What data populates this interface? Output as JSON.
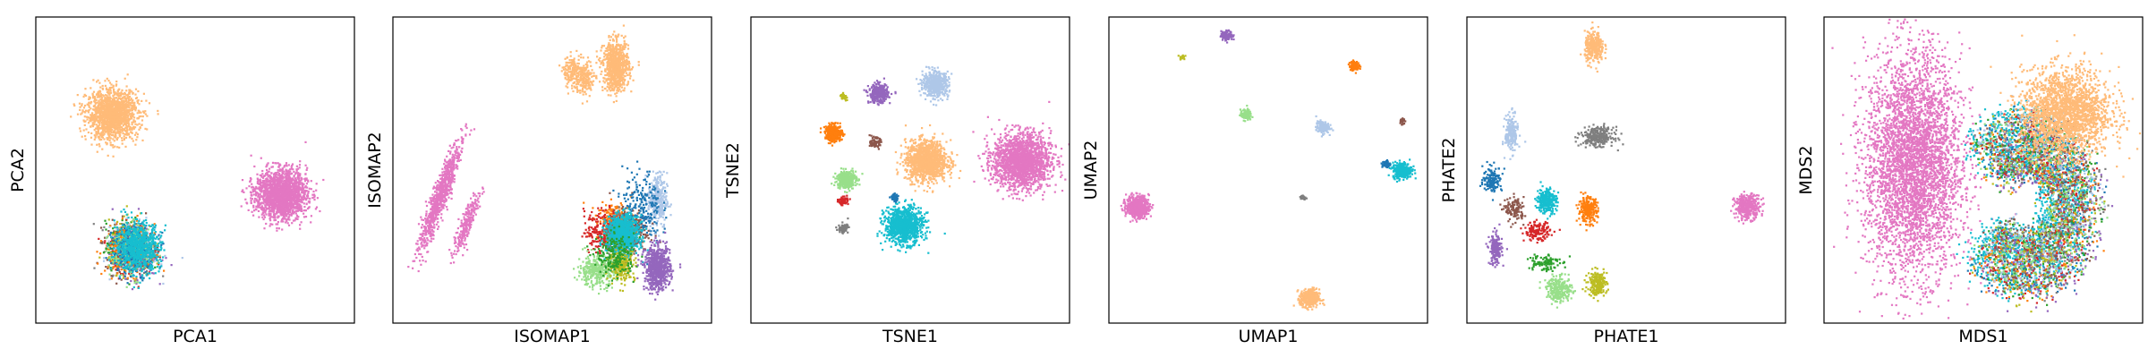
{
  "palette": {
    "blue": "#1f77b4",
    "light_blue": "#aec7e8",
    "orange": "#ff7f0e",
    "light_orange": "#ffbb78",
    "green": "#2ca02c",
    "light_green": "#98df8a",
    "red": "#d62728",
    "purple": "#9467bd",
    "brown": "#8c564b",
    "pink": "#e377c2",
    "gray": "#7f7f7f",
    "olive": "#bcbd22",
    "cyan": "#17becf"
  },
  "chart_data": [
    {
      "type": "scatter",
      "xlabel": "PCA1",
      "ylabel": "PCA2",
      "xlim": [
        0,
        100
      ],
      "ylim": [
        0,
        100
      ],
      "grid": false,
      "ticks": false,
      "clusters": [
        {
          "color": "light_orange",
          "cx": 24,
          "cy": 68,
          "rx": 8,
          "ry": 8,
          "n": 1500
        },
        {
          "color": "pink",
          "cx": 77,
          "cy": 42,
          "rx": 8,
          "ry": 8,
          "n": 1800
        },
        {
          "color": "gray",
          "cx": 30,
          "cy": 24,
          "rx": 7,
          "ry": 8,
          "n": 250
        },
        {
          "color": "brown",
          "cx": 29,
          "cy": 25,
          "rx": 7,
          "ry": 8,
          "n": 250
        },
        {
          "color": "purple",
          "cx": 31,
          "cy": 23,
          "rx": 7,
          "ry": 8,
          "n": 250
        },
        {
          "color": "green",
          "cx": 29,
          "cy": 25,
          "rx": 7,
          "ry": 8,
          "n": 200
        },
        {
          "color": "red",
          "cx": 30,
          "cy": 24,
          "rx": 7,
          "ry": 8,
          "n": 200
        },
        {
          "color": "olive",
          "cx": 30,
          "cy": 25,
          "rx": 7,
          "ry": 8,
          "n": 200
        },
        {
          "color": "orange",
          "cx": 29,
          "cy": 24,
          "rx": 7,
          "ry": 8,
          "n": 250
        },
        {
          "color": "light_blue",
          "cx": 31,
          "cy": 25,
          "rx": 7,
          "ry": 8,
          "n": 200
        },
        {
          "color": "light_green",
          "cx": 30,
          "cy": 23,
          "rx": 7,
          "ry": 8,
          "n": 200
        },
        {
          "color": "blue",
          "cx": 31,
          "cy": 24,
          "rx": 7,
          "ry": 8,
          "n": 250
        },
        {
          "color": "cyan",
          "cx": 32,
          "cy": 25,
          "rx": 7,
          "ry": 8,
          "n": 700
        }
      ]
    },
    {
      "type": "scatter",
      "xlabel": "ISOMAP1",
      "ylabel": "ISOMAP2",
      "xlim": [
        0,
        100
      ],
      "ylim": [
        0,
        100
      ],
      "grid": false,
      "ticks": false,
      "clusters": [
        {
          "color": "light_orange",
          "cx": 56,
          "cy": 82,
          "rx": 2.5,
          "ry": 5,
          "n": 150
        },
        {
          "color": "light_orange",
          "cx": 70,
          "cy": 84,
          "rx": 4,
          "ry": 8,
          "n": 800
        },
        {
          "color": "light_orange",
          "cx": 60,
          "cy": 80,
          "rx": 3,
          "ry": 6,
          "n": 200
        },
        {
          "color": "pink",
          "cx": 13,
          "cy": 36,
          "rx": 2.5,
          "ry": 14,
          "n": 450,
          "tilt": -0.35
        },
        {
          "color": "pink",
          "cx": 17,
          "cy": 48,
          "rx": 2,
          "ry": 14,
          "n": 350,
          "tilt": -0.35
        },
        {
          "color": "pink",
          "cx": 23,
          "cy": 32,
          "rx": 2,
          "ry": 11,
          "n": 250,
          "tilt": -0.35
        },
        {
          "color": "light_blue",
          "cx": 83,
          "cy": 40,
          "rx": 3,
          "ry": 9,
          "n": 300
        },
        {
          "color": "orange",
          "cx": 70,
          "cy": 33,
          "rx": 6,
          "ry": 6,
          "n": 300
        },
        {
          "color": "brown",
          "cx": 74,
          "cy": 30,
          "rx": 6,
          "ry": 7,
          "n": 250
        },
        {
          "color": "red",
          "cx": 66,
          "cy": 30,
          "rx": 6,
          "ry": 7,
          "n": 220
        },
        {
          "color": "blue",
          "cx": 78,
          "cy": 38,
          "rx": 6,
          "ry": 12,
          "n": 220
        },
        {
          "color": "gray",
          "cx": 72,
          "cy": 28,
          "rx": 5,
          "ry": 6,
          "n": 200
        },
        {
          "color": "cyan",
          "cx": 72,
          "cy": 29,
          "rx": 5,
          "ry": 6,
          "n": 900
        },
        {
          "color": "light_green",
          "cx": 64,
          "cy": 17,
          "rx": 6,
          "ry": 5,
          "n": 350
        },
        {
          "color": "olive",
          "cx": 72,
          "cy": 19,
          "rx": 4,
          "ry": 5,
          "n": 220
        },
        {
          "color": "green",
          "cx": 70,
          "cy": 22,
          "rx": 6,
          "ry": 7,
          "n": 200
        },
        {
          "color": "purple",
          "cx": 83,
          "cy": 18,
          "rx": 4,
          "ry": 7,
          "n": 700
        }
      ]
    },
    {
      "type": "scatter",
      "xlabel": "TSNE1",
      "ylabel": "TSNE2",
      "xlim": [
        0,
        100
      ],
      "ylim": [
        0,
        100
      ],
      "grid": false,
      "ticks": false,
      "clusters": [
        {
          "color": "pink",
          "cx": 85,
          "cy": 53,
          "rx": 9,
          "ry": 9,
          "n": 1800
        },
        {
          "color": "light_orange",
          "cx": 55,
          "cy": 53,
          "rx": 6.5,
          "ry": 6.5,
          "n": 1200
        },
        {
          "color": "cyan",
          "cx": 48,
          "cy": 32,
          "rx": 6,
          "ry": 6,
          "n": 1000
        },
        {
          "color": "light_blue",
          "cx": 58,
          "cy": 78,
          "rx": 4,
          "ry": 4,
          "n": 500
        },
        {
          "color": "purple",
          "cx": 40,
          "cy": 75,
          "rx": 3,
          "ry": 3,
          "n": 350
        },
        {
          "color": "orange",
          "cx": 26,
          "cy": 62,
          "rx": 2.7,
          "ry": 2.7,
          "n": 320
        },
        {
          "color": "light_green",
          "cx": 30,
          "cy": 47,
          "rx": 3,
          "ry": 3,
          "n": 350
        },
        {
          "color": "brown",
          "cx": 39,
          "cy": 59,
          "rx": 1.5,
          "ry": 1.5,
          "n": 80
        },
        {
          "color": "red",
          "cx": 29,
          "cy": 40,
          "rx": 1.5,
          "ry": 1.2,
          "n": 80
        },
        {
          "color": "blue",
          "cx": 45,
          "cy": 41,
          "rx": 1.2,
          "ry": 1.2,
          "n": 60
        },
        {
          "color": "gray",
          "cx": 29,
          "cy": 31,
          "rx": 1.5,
          "ry": 1.5,
          "n": 80
        },
        {
          "color": "olive",
          "cx": 29,
          "cy": 74,
          "rx": 1,
          "ry": 1,
          "n": 30
        }
      ]
    },
    {
      "type": "scatter",
      "xlabel": "UMAP1",
      "ylabel": "UMAP2",
      "xlim": [
        0,
        100
      ],
      "ylim": [
        0,
        100
      ],
      "grid": false,
      "ticks": false,
      "clusters": [
        {
          "color": "pink",
          "cx": 9,
          "cy": 38,
          "rx": 3.5,
          "ry": 3.5,
          "n": 600
        },
        {
          "color": "light_orange",
          "cx": 63,
          "cy": 8,
          "rx": 3,
          "ry": 3,
          "n": 350
        },
        {
          "color": "cyan",
          "cx": 92,
          "cy": 50,
          "rx": 3,
          "ry": 2.5,
          "n": 350
        },
        {
          "color": "blue",
          "cx": 87,
          "cy": 52,
          "rx": 1.2,
          "ry": 1.2,
          "n": 50
        },
        {
          "color": "light_blue",
          "cx": 67,
          "cy": 64,
          "rx": 2,
          "ry": 2,
          "n": 150
        },
        {
          "color": "light_green",
          "cx": 43,
          "cy": 68,
          "rx": 1.7,
          "ry": 1.7,
          "n": 120
        },
        {
          "color": "purple",
          "cx": 37,
          "cy": 94,
          "rx": 1.8,
          "ry": 1.5,
          "n": 120
        },
        {
          "color": "orange",
          "cx": 77,
          "cy": 84,
          "rx": 1.5,
          "ry": 1.5,
          "n": 100
        },
        {
          "color": "olive",
          "cx": 23,
          "cy": 87,
          "rx": 0.8,
          "ry": 0.8,
          "n": 20
        },
        {
          "color": "brown",
          "cx": 92,
          "cy": 66,
          "rx": 0.8,
          "ry": 1.2,
          "n": 30
        },
        {
          "color": "gray",
          "cx": 61,
          "cy": 41,
          "rx": 0.8,
          "ry": 0.8,
          "n": 30
        }
      ]
    },
    {
      "type": "scatter",
      "xlabel": "PHATE1",
      "ylabel": "PHATE2",
      "xlim": [
        0,
        100
      ],
      "ylim": [
        0,
        100
      ],
      "grid": false,
      "ticks": false,
      "clusters": [
        {
          "color": "light_orange",
          "cx": 40,
          "cy": 90,
          "rx": 3,
          "ry": 5,
          "n": 300
        },
        {
          "color": "gray",
          "cx": 41,
          "cy": 61,
          "rx": 5,
          "ry": 3,
          "n": 300
        },
        {
          "color": "light_blue",
          "cx": 14,
          "cy": 62,
          "rx": 2,
          "ry": 6,
          "n": 200
        },
        {
          "color": "pink",
          "cx": 88,
          "cy": 38,
          "rx": 4,
          "ry": 4,
          "n": 350
        },
        {
          "color": "cyan",
          "cx": 25,
          "cy": 40,
          "rx": 3,
          "ry": 4,
          "n": 300
        },
        {
          "color": "orange",
          "cx": 38,
          "cy": 37,
          "rx": 3,
          "ry": 4,
          "n": 250
        },
        {
          "color": "blue",
          "cx": 8,
          "cy": 47,
          "rx": 3,
          "ry": 4,
          "n": 150
        },
        {
          "color": "brown",
          "cx": 15,
          "cy": 37,
          "rx": 3,
          "ry": 4,
          "n": 120
        },
        {
          "color": "red",
          "cx": 22,
          "cy": 30,
          "rx": 4,
          "ry": 3,
          "n": 150
        },
        {
          "color": "purple",
          "cx": 9,
          "cy": 24,
          "rx": 2,
          "ry": 5,
          "n": 200
        },
        {
          "color": "light_green",
          "cx": 29,
          "cy": 11,
          "rx": 4,
          "ry": 4,
          "n": 250
        },
        {
          "color": "olive",
          "cx": 41,
          "cy": 13,
          "rx": 3,
          "ry": 4,
          "n": 200
        },
        {
          "color": "green",
          "cx": 24,
          "cy": 20,
          "rx": 5,
          "ry": 3,
          "n": 100
        }
      ]
    },
    {
      "type": "scatter",
      "xlabel": "MDS1",
      "ylabel": "MDS2",
      "xlim": [
        0,
        100
      ],
      "ylim": [
        0,
        100
      ],
      "grid": false,
      "ticks": false,
      "clusters": [
        {
          "color": "pink",
          "cx": 28,
          "cy": 52,
          "rx": 15,
          "ry": 36,
          "n": 4000
        },
        {
          "color": "cyan",
          "cx": 62,
          "cy": 40,
          "rx": 24,
          "ry": 34,
          "n": 1800,
          "ring": true
        },
        {
          "color": "blue",
          "cx": 64,
          "cy": 38,
          "rx": 24,
          "ry": 34,
          "n": 400,
          "ring": true
        },
        {
          "color": "orange",
          "cx": 64,
          "cy": 38,
          "rx": 24,
          "ry": 34,
          "n": 400,
          "ring": true
        },
        {
          "color": "purple",
          "cx": 66,
          "cy": 36,
          "rx": 24,
          "ry": 34,
          "n": 400,
          "ring": true
        },
        {
          "color": "green",
          "cx": 64,
          "cy": 40,
          "rx": 24,
          "ry": 34,
          "n": 350,
          "ring": true
        },
        {
          "color": "red",
          "cx": 64,
          "cy": 38,
          "rx": 24,
          "ry": 34,
          "n": 350,
          "ring": true
        },
        {
          "color": "gray",
          "cx": 66,
          "cy": 40,
          "rx": 24,
          "ry": 34,
          "n": 300,
          "ring": true
        },
        {
          "color": "olive",
          "cx": 63,
          "cy": 38,
          "rx": 24,
          "ry": 34,
          "n": 300,
          "ring": true
        },
        {
          "color": "brown",
          "cx": 65,
          "cy": 39,
          "rx": 24,
          "ry": 34,
          "n": 300,
          "ring": true
        },
        {
          "color": "light_blue",
          "cx": 64,
          "cy": 42,
          "rx": 24,
          "ry": 34,
          "n": 300,
          "ring": true
        },
        {
          "color": "light_green",
          "cx": 64,
          "cy": 40,
          "rx": 24,
          "ry": 34,
          "n": 300,
          "ring": true
        },
        {
          "color": "light_orange",
          "cx": 76,
          "cy": 69,
          "rx": 14,
          "ry": 14,
          "n": 2000
        }
      ]
    }
  ]
}
